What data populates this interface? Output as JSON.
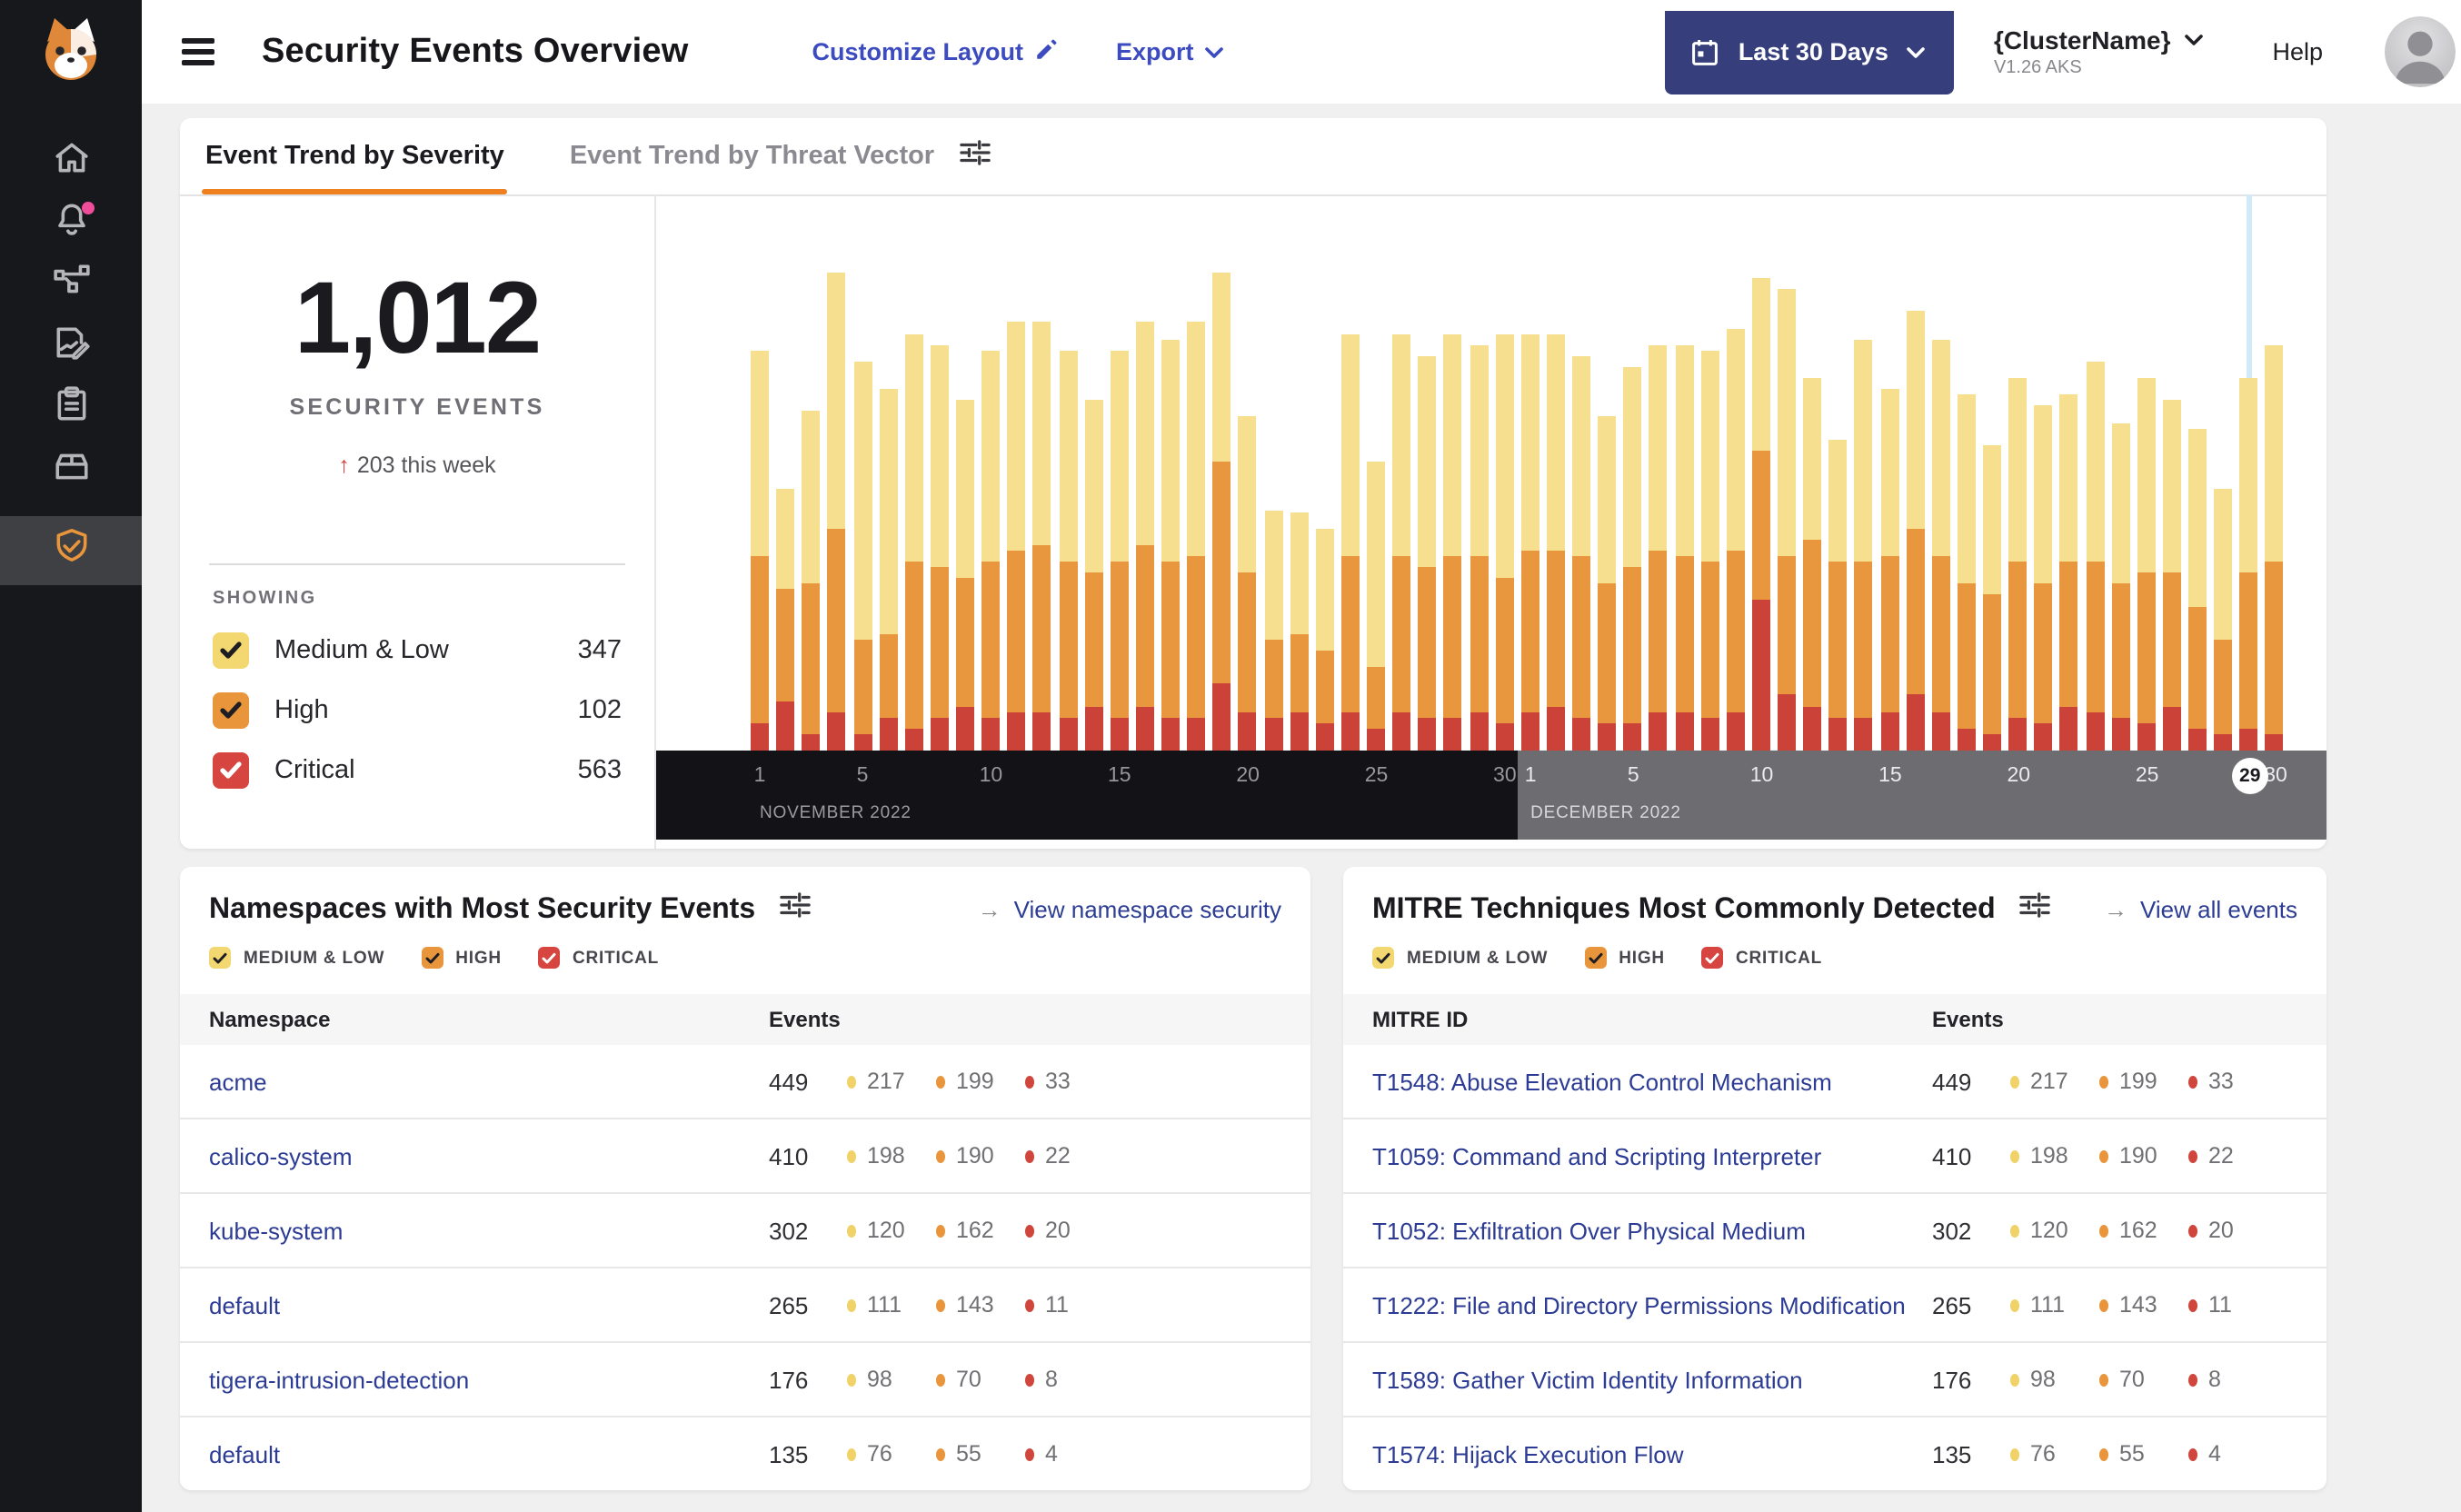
{
  "brand": {
    "logo_name": "calico-cat-logo"
  },
  "sidebar": {
    "items": [
      {
        "icon": "home-icon"
      },
      {
        "icon": "bell-icon",
        "badge": true
      },
      {
        "icon": "network-graph-icon"
      },
      {
        "icon": "report-edit-icon"
      },
      {
        "icon": "clipboard-icon"
      },
      {
        "icon": "storage-box-icon"
      },
      {
        "icon": "shield-check-icon",
        "active": true
      }
    ]
  },
  "header": {
    "title": "Security Events Overview",
    "customize_layout_label": "Customize Layout",
    "export_label": "Export",
    "date_range_label": "Last 30 Days",
    "cluster_name": "{ClusterName}",
    "cluster_version": "V1.26 AKS",
    "help_label": "Help"
  },
  "tabs": {
    "items": [
      "Event Trend by Severity",
      "Event Trend by Threat Vector"
    ],
    "active_index": 0
  },
  "summary": {
    "total": "1,012",
    "total_label": "SECURITY EVENTS",
    "change": "203 this week",
    "showing_label": "SHOWING",
    "severities": [
      {
        "label": "Medium & Low",
        "count": 347,
        "color": "#f3d771",
        "check": "#1e1e22"
      },
      {
        "label": "High",
        "count": 102,
        "color": "#e8953c",
        "check": "#1e1e22"
      },
      {
        "label": "Critical",
        "count": 563,
        "color": "#d64540",
        "check": "#ffffff"
      }
    ]
  },
  "chart_data": {
    "type": "bar",
    "stacked": true,
    "unit": "percent of plot height (estimated from pixels)",
    "x_axis": {
      "months": [
        {
          "label": "NOVEMBER 2022",
          "days": 30,
          "ticks": [
            1,
            5,
            10,
            15,
            20,
            25,
            30
          ]
        },
        {
          "label": "DECEMBER 2022",
          "days": 30,
          "ticks": [
            1,
            5,
            10,
            15,
            20,
            25,
            30
          ]
        }
      ],
      "highlighted_day": {
        "month": "DECEMBER 2022",
        "day": 29
      }
    },
    "legend_position": "left card (SHOWING checkboxes)",
    "grid": false,
    "series": [
      {
        "name": "Critical",
        "color": "#cb4338",
        "values": [
          5,
          9,
          3,
          7,
          3,
          6,
          4,
          6,
          8,
          6,
          7,
          7,
          6,
          8,
          6,
          8,
          6,
          6,
          12,
          7,
          6,
          7,
          5,
          7,
          4,
          7,
          6,
          6,
          7,
          5,
          7,
          8,
          6,
          5,
          5,
          7,
          7,
          6,
          7,
          27,
          10,
          8,
          6,
          6,
          7,
          10,
          7,
          4,
          3,
          6,
          5,
          8,
          7,
          6,
          5,
          8,
          4,
          3,
          4,
          3
        ]
      },
      {
        "name": "High",
        "color": "#e9973e",
        "values": [
          30,
          20,
          27,
          33,
          17,
          15,
          30,
          27,
          23,
          28,
          29,
          30,
          28,
          24,
          28,
          29,
          28,
          29,
          40,
          25,
          14,
          14,
          13,
          28,
          11,
          28,
          27,
          29,
          28,
          26,
          29,
          28,
          29,
          25,
          28,
          29,
          28,
          28,
          29,
          27,
          25,
          30,
          28,
          28,
          28,
          30,
          28,
          26,
          25,
          28,
          25,
          26,
          27,
          24,
          27,
          24,
          22,
          17,
          28,
          31
        ]
      },
      {
        "name": "Medium & Low",
        "color": "#f6e08f",
        "values": [
          37,
          18,
          31,
          46,
          50,
          44,
          41,
          40,
          32,
          38,
          41,
          40,
          38,
          31,
          38,
          40,
          40,
          42,
          34,
          28,
          23,
          22,
          22,
          40,
          37,
          40,
          38,
          40,
          38,
          44,
          39,
          39,
          36,
          30,
          36,
          37,
          38,
          38,
          40,
          31,
          48,
          29,
          22,
          40,
          30,
          39,
          39,
          34,
          27,
          33,
          32,
          30,
          36,
          29,
          35,
          31,
          32,
          27,
          35,
          39
        ]
      }
    ]
  },
  "namespaces_panel": {
    "title": "Namespaces with Most Security Events",
    "action_label": "View namespace security",
    "filters": [
      {
        "label": "MEDIUM & LOW",
        "color": "#f3d771",
        "check": "#1e1e22"
      },
      {
        "label": "HIGH",
        "color": "#e8953c",
        "check": "#1e1e22"
      },
      {
        "label": "CRITICAL",
        "color": "#d64540",
        "check": "#ffffff"
      }
    ],
    "columns": [
      "Namespace",
      "Events"
    ],
    "rows": [
      {
        "name": "acme",
        "total": 449,
        "medium_low": 217,
        "high": 199,
        "critical": 33
      },
      {
        "name": "calico-system",
        "total": 410,
        "medium_low": 198,
        "high": 190,
        "critical": 22
      },
      {
        "name": "kube-system",
        "total": 302,
        "medium_low": 120,
        "high": 162,
        "critical": 20
      },
      {
        "name": "default",
        "total": 265,
        "medium_low": 111,
        "high": 143,
        "critical": 11
      },
      {
        "name": "tigera-intrusion-detection",
        "total": 176,
        "medium_low": 98,
        "high": 70,
        "critical": 8
      },
      {
        "name": "default",
        "total": 135,
        "medium_low": 76,
        "high": 55,
        "critical": 4
      }
    ]
  },
  "mitre_panel": {
    "title": "MITRE Techniques Most Commonly Detected",
    "action_label": "View all events",
    "filters": [
      {
        "label": "MEDIUM & LOW",
        "color": "#f3d771",
        "check": "#1e1e22"
      },
      {
        "label": "HIGH",
        "color": "#e8953c",
        "check": "#1e1e22"
      },
      {
        "label": "CRITICAL",
        "color": "#d64540",
        "check": "#ffffff"
      }
    ],
    "columns": [
      "MITRE ID",
      "Events"
    ],
    "rows": [
      {
        "name": "T1548: Abuse Elevation Control Mechanism",
        "total": 449,
        "medium_low": 217,
        "high": 199,
        "critical": 33
      },
      {
        "name": "T1059: Command and Scripting Interpreter",
        "total": 410,
        "medium_low": 198,
        "high": 190,
        "critical": 22
      },
      {
        "name": "T1052: Exfiltration Over Physical Medium",
        "total": 302,
        "medium_low": 120,
        "high": 162,
        "critical": 20
      },
      {
        "name": "T1222: File and Directory Permissions Modification",
        "total": 265,
        "medium_low": 111,
        "high": 143,
        "critical": 11
      },
      {
        "name": "T1589: Gather Victim Identity Information",
        "total": 176,
        "medium_low": 98,
        "high": 70,
        "critical": 8
      },
      {
        "name": "T1574: Hijack Execution Flow",
        "total": 135,
        "medium_low": 76,
        "high": 55,
        "critical": 4
      }
    ]
  },
  "dot_colors": {
    "medium_low": "#f0d269",
    "high": "#e8953c",
    "critical": "#d0453c"
  }
}
